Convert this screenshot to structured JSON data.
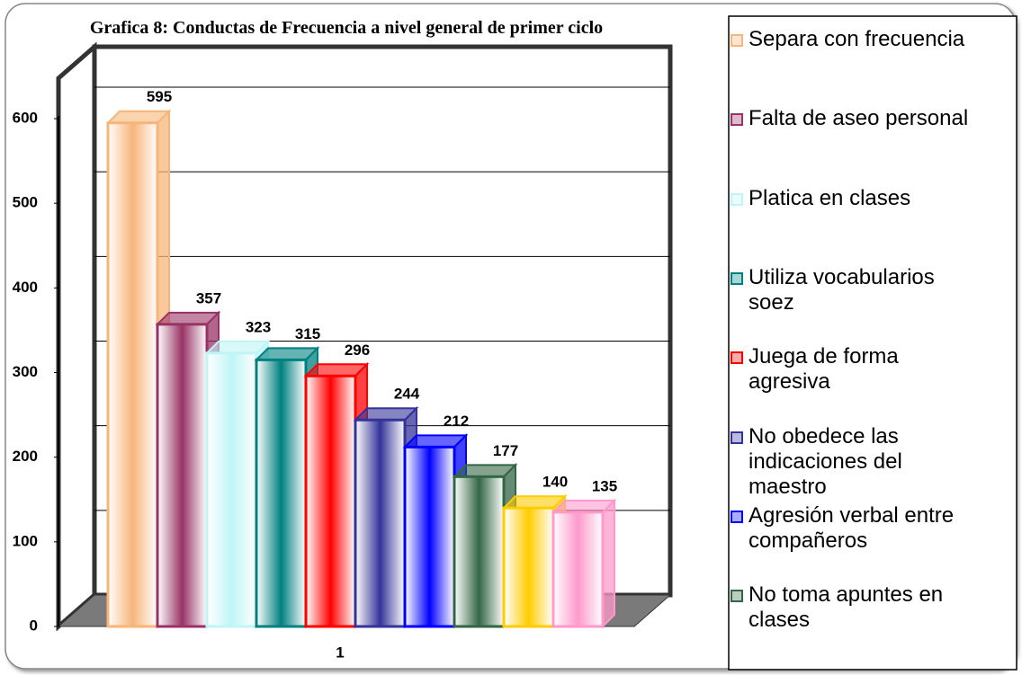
{
  "chart_data": {
    "type": "bar3d",
    "title": "Grafica 8: Conductas de Frecuencia a nivel general de primer ciclo",
    "categories": [
      "1"
    ],
    "series": [
      {
        "name": "Separa con frecuencia",
        "color": "#f7b57a",
        "values": [
          595
        ]
      },
      {
        "name": "Falta de aseo personal",
        "color": "#993366",
        "values": [
          357
        ]
      },
      {
        "name": "Platica en clases",
        "color": "#bff5f5",
        "values": [
          323
        ]
      },
      {
        "name": "Utiliza vocabularios soez",
        "color": "#008080",
        "values": [
          315
        ]
      },
      {
        "name": "Juega de forma agresiva",
        "color": "#ff0000",
        "values": [
          296
        ]
      },
      {
        "name": "No obedece las indicaciones del maestro",
        "color": "#333399",
        "values": [
          244
        ]
      },
      {
        "name": "Agresión verbal entre compañeros",
        "color": "#0000ff",
        "values": [
          212
        ]
      },
      {
        "name": "No toma apuntes en clases",
        "color": "#336644",
        "values": [
          177
        ]
      },
      {
        "name": null,
        "color": "#ffcc00",
        "values": [
          140
        ]
      },
      {
        "name": null,
        "color": "#ff99cc",
        "values": [
          135
        ]
      }
    ],
    "ylim": [
      0,
      600
    ],
    "yticks": [
      0,
      100,
      200,
      300,
      400,
      500,
      600
    ],
    "grid": true,
    "legend": "right"
  }
}
